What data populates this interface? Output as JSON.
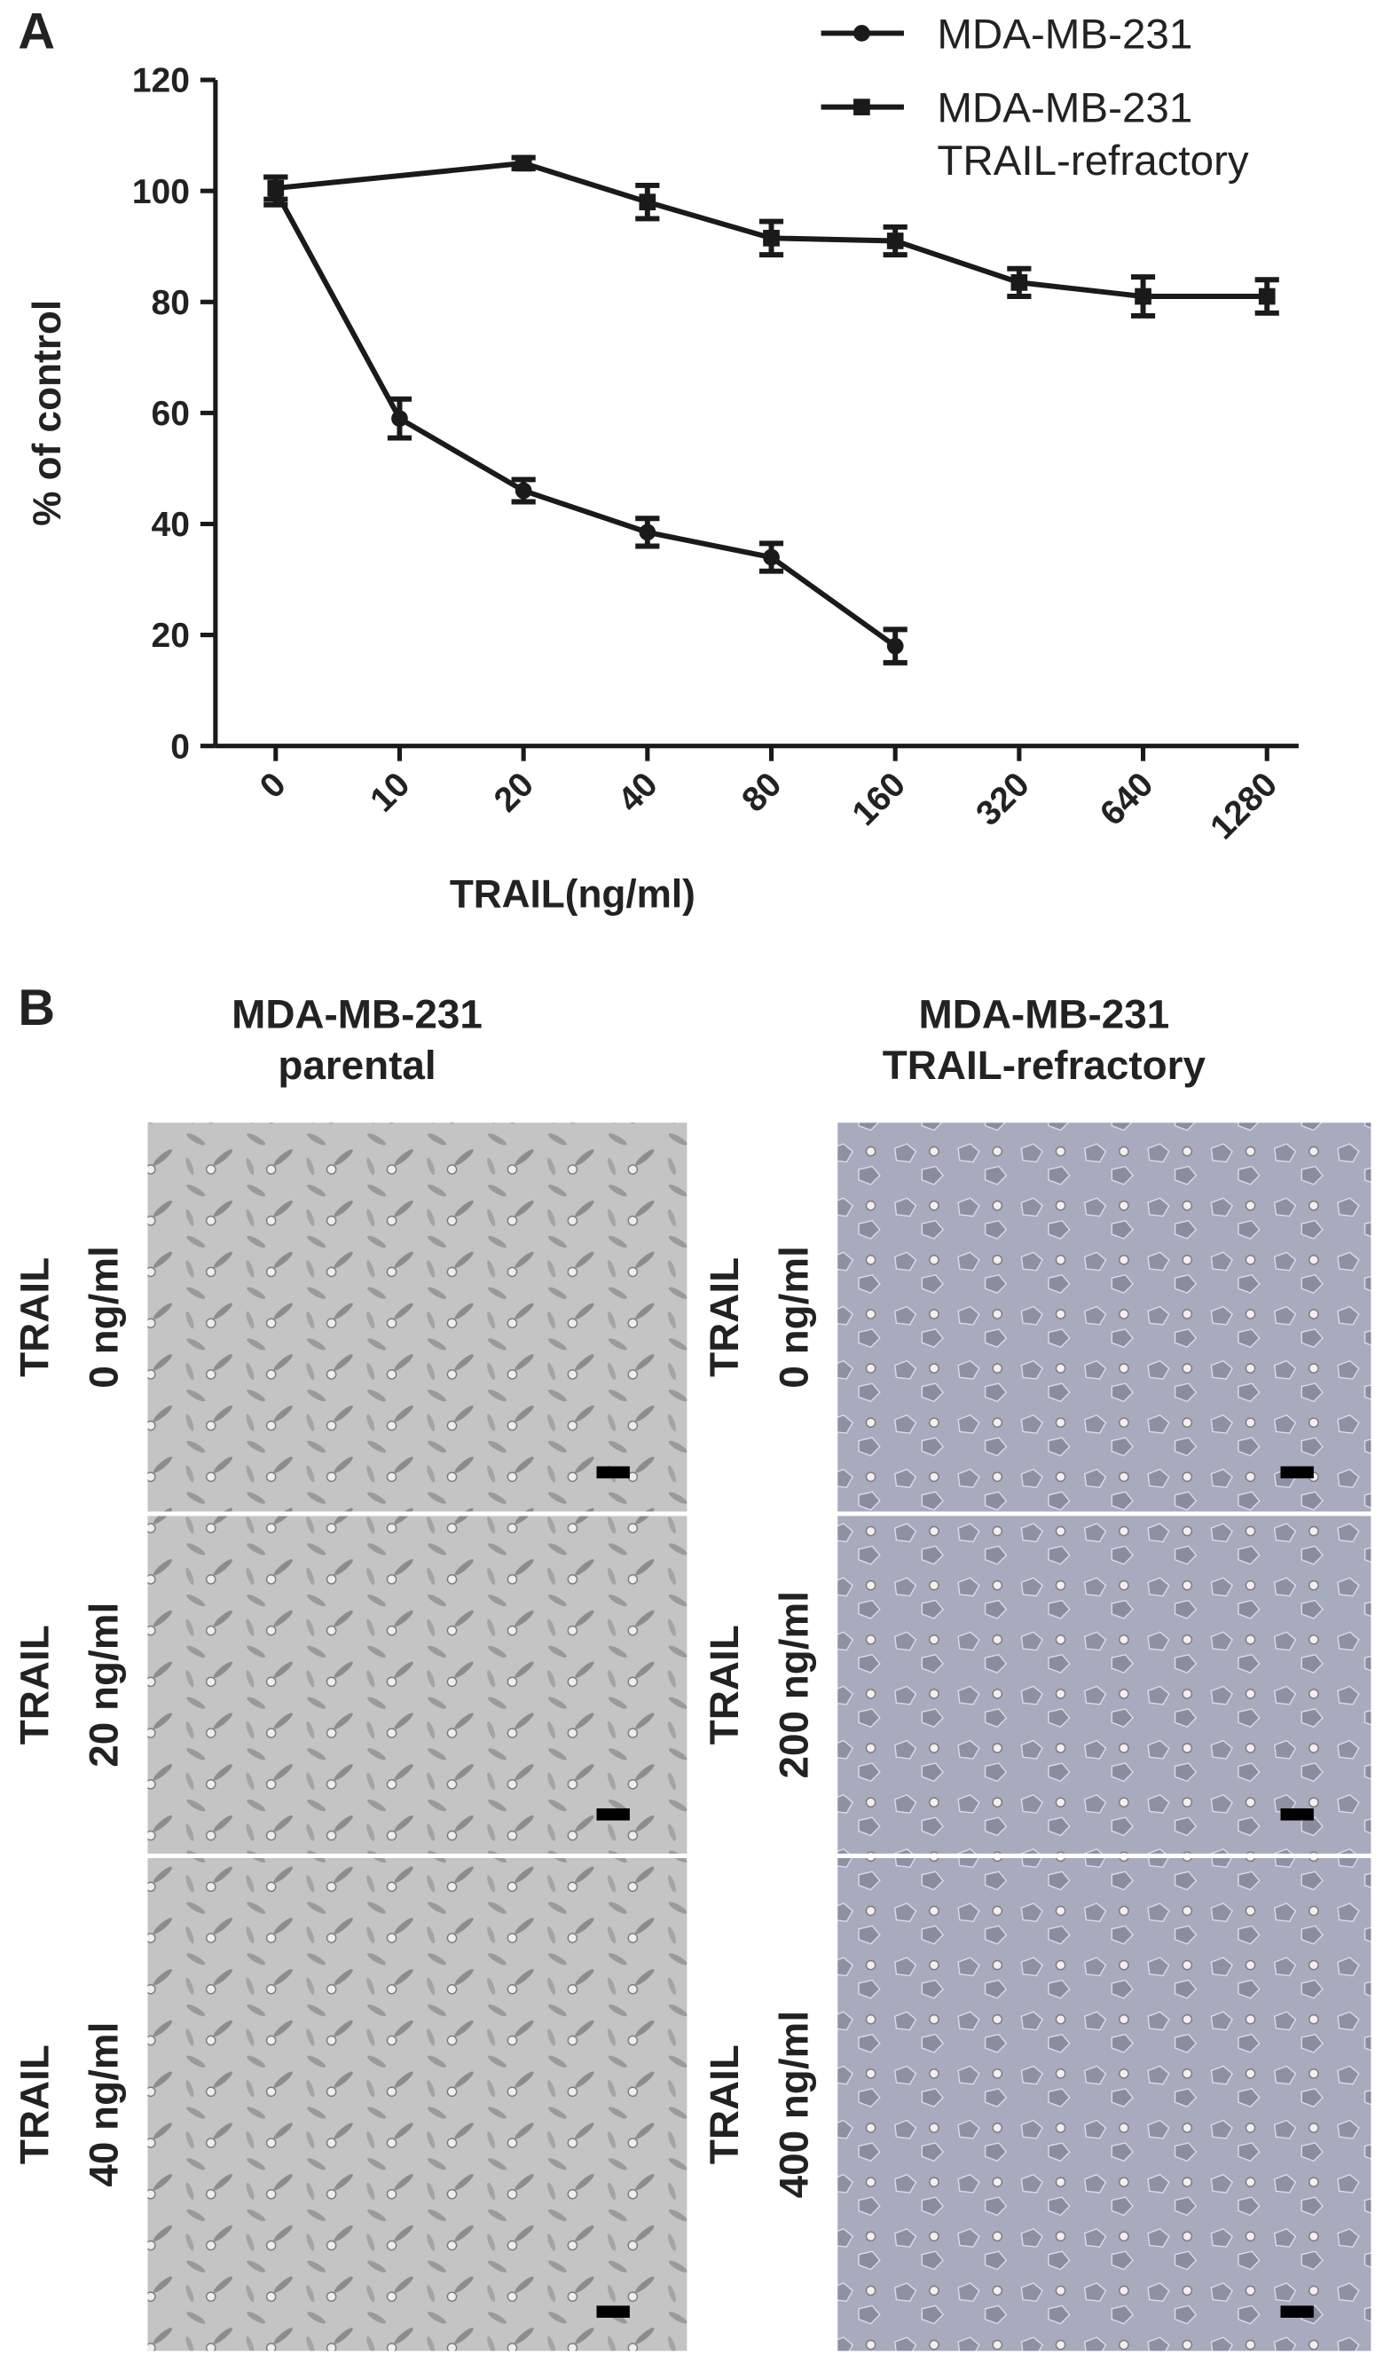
{
  "chart_data": {
    "type": "line",
    "panel_label": "A",
    "x_label": "TRAIL(ng/ml)",
    "y_label": "% of control",
    "categories": [
      "0",
      "10",
      "20",
      "40",
      "80",
      "160",
      "320",
      "640",
      "1280"
    ],
    "series": [
      {
        "name": "MDA-MB-231",
        "color": "#1a1a1a",
        "marker": "circle",
        "values": [
          100,
          59,
          46,
          38.5,
          34,
          18,
          null,
          null,
          null
        ],
        "errors": [
          2.5,
          3.5,
          2,
          2.5,
          2.5,
          3,
          null,
          null,
          null
        ]
      },
      {
        "name": "MDA-MB-231 TRAIL-refractory",
        "color": "#1a1a1a",
        "marker": "square",
        "values": [
          100.5,
          null,
          105,
          98,
          91.5,
          91,
          83.5,
          81,
          81
        ],
        "errors": [
          2,
          null,
          1,
          3,
          3,
          2.5,
          2.5,
          3.5,
          3
        ]
      }
    ],
    "connect_gaps": true,
    "ylim": [
      0,
      120
    ],
    "yticks": [
      0,
      20,
      40,
      60,
      80,
      100,
      120
    ],
    "grid": false,
    "legend": "top-right"
  },
  "panel_b": {
    "label": "B",
    "columns": [
      "MDA-MB-231 parental",
      "MDA-MB-231 TRAIL-refractory"
    ],
    "rows": [
      [
        "TRAIL 0 ng/ml",
        "TRAIL 0 ng/ml"
      ],
      [
        "TRAIL 20 ng/ml",
        "TRAIL 200 ng/ml"
      ],
      [
        "TRAIL 40 ng/ml",
        "TRAIL 400 ng/ml"
      ]
    ]
  }
}
